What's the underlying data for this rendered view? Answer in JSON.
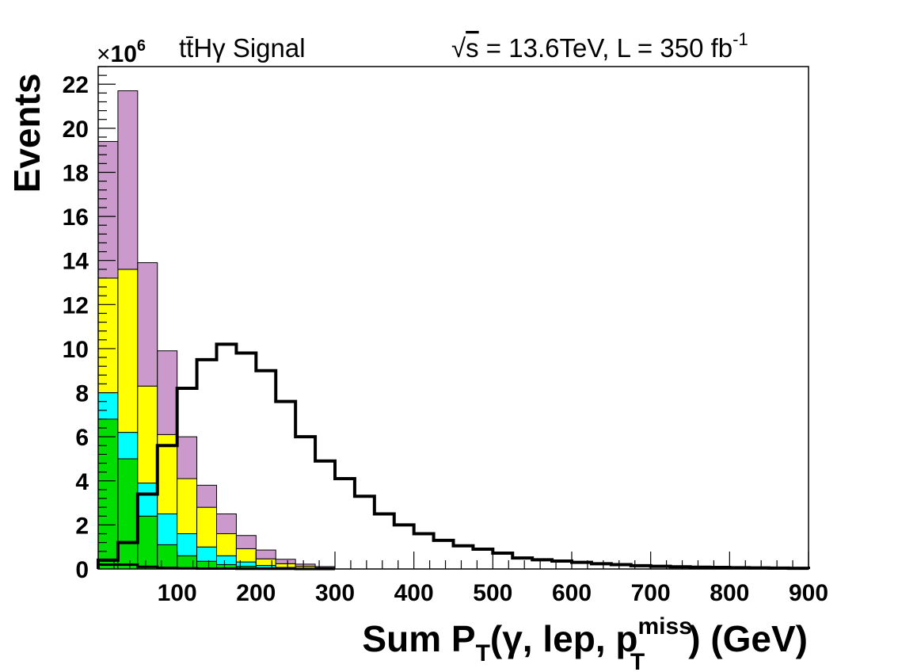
{
  "chart_data": {
    "type": "bar",
    "title_left": "tt̄Hγ Signal",
    "title_right": {
      "sqrt": "√",
      "s": "s",
      "rest": " = 13.6TeV, L = 350 fb",
      "sup": "-1"
    },
    "exponent": {
      "times": "×",
      "base": "10",
      "power": "6"
    },
    "ylabel": "Events",
    "xlabel": {
      "part1": "Sum P",
      "sub1": "T",
      "part2": "(γ, lep, p",
      "sup": "miss",
      "sub2": "T",
      "part3": ") (GeV)"
    },
    "xlim": [
      0,
      900
    ],
    "ylim": [
      0,
      22.8
    ],
    "y_scale": 1000000,
    "xticks": [
      100,
      200,
      300,
      400,
      500,
      600,
      700,
      800,
      900
    ],
    "yticks": [
      0,
      2,
      4,
      6,
      8,
      10,
      12,
      14,
      16,
      18,
      20,
      22
    ],
    "bin_width": 25,
    "stacked_series": [
      {
        "name": "green",
        "color": "#00dd00",
        "values": [
          6.8,
          5.0,
          2.4,
          1.1,
          0.6,
          0.35,
          0.2,
          0.12,
          0.06,
          0.03,
          0.02,
          0.01
        ]
      },
      {
        "name": "cyan",
        "color": "#00ffff",
        "values": [
          1.2,
          1.2,
          1.5,
          1.4,
          1.0,
          0.65,
          0.4,
          0.2,
          0.1,
          0.04,
          0.02,
          0.01
        ]
      },
      {
        "name": "yellow",
        "color": "#ffff00",
        "values": [
          5.2,
          7.4,
          4.4,
          3.6,
          2.5,
          1.8,
          1.0,
          0.6,
          0.3,
          0.17,
          0.08,
          0.04
        ]
      },
      {
        "name": "violet",
        "color": "#cc99cc",
        "values": [
          6.2,
          8.1,
          5.6,
          3.8,
          1.9,
          1.0,
          0.9,
          0.6,
          0.4,
          0.2,
          0.1,
          0.05
        ]
      }
    ],
    "signal": {
      "name": "tt̄Hγ Signal",
      "values": [
        0.4,
        1.2,
        3.4,
        5.6,
        8.2,
        9.5,
        10.2,
        9.8,
        9.0,
        7.6,
        6.0,
        4.9,
        4.1,
        3.3,
        2.5,
        2.0,
        1.6,
        1.3,
        1.05,
        0.9,
        0.72,
        0.5,
        0.42,
        0.36,
        0.3,
        0.24,
        0.2,
        0.15,
        0.12,
        0.1,
        0.08,
        0.07,
        0.06,
        0.05,
        0.04,
        0.03
      ]
    },
    "bottom_line": {
      "name": "black baseline",
      "values": [
        0.2,
        0.2,
        0.1,
        0.05,
        0.03,
        0.02,
        0.02,
        0.01,
        0.01,
        0.01,
        0.0,
        0.0
      ]
    }
  }
}
